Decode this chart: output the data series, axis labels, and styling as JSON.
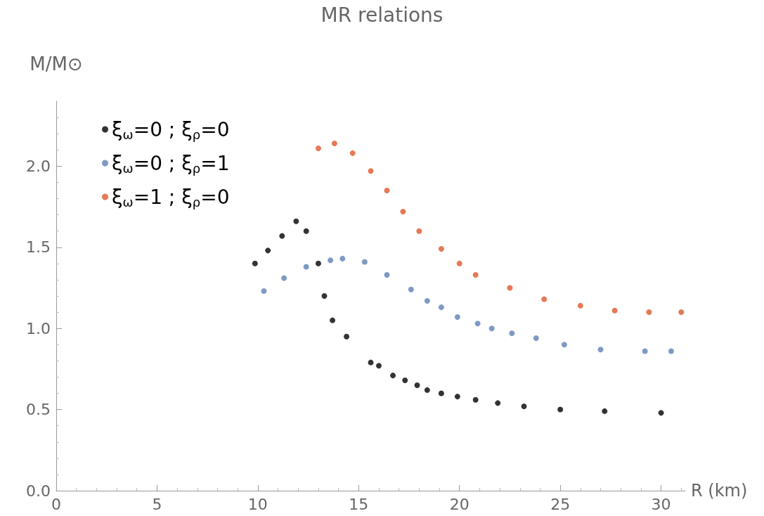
{
  "chart_data": {
    "type": "scatter",
    "title": "MR relations",
    "xlabel": "R (km)",
    "ylabel": "M/M⊙",
    "marker": "circle",
    "grid": false,
    "legend": "top left",
    "xlim": [
      0,
      31.2
    ],
    "xticks": [
      0,
      5,
      10,
      15,
      20,
      25,
      30
    ],
    "ylim": [
      0,
      2.4
    ],
    "yticks": [
      {
        "value": 0,
        "label": "0.0"
      },
      {
        "value": 0.5,
        "label": "0.5"
      },
      {
        "value": 1,
        "label": "1.0"
      },
      {
        "value": 1.5,
        "label": "1.5"
      },
      {
        "value": 2,
        "label": "2.0"
      }
    ],
    "series": [
      {
        "name": "ξ$_{ω}$=0 ; ξ$_{ρ}$=0",
        "color": "#000000",
        "x": [
          9.86,
          10.5,
          11.2,
          11.9,
          12.4,
          13.0,
          13.3,
          13.7,
          14.4,
          15.6,
          16.0,
          16.7,
          17.3,
          17.9,
          18.4,
          19.1,
          19.9,
          20.8,
          21.9,
          23.2,
          25.0,
          27.2,
          30.0
        ],
        "values": [
          1.4,
          1.48,
          1.57,
          1.66,
          1.6,
          1.4,
          1.2,
          1.05,
          0.95,
          0.79,
          0.77,
          0.71,
          0.68,
          0.65,
          0.62,
          0.6,
          0.58,
          0.56,
          0.54,
          0.52,
          0.5,
          0.49,
          0.48
        ]
      },
      {
        "name": "ξ$_{ω}$=0 ; ξ$_{ρ}$=1",
        "color": "#5e81b5",
        "x": [
          10.3,
          11.3,
          12.4,
          13.6,
          14.2,
          15.3,
          16.4,
          17.6,
          18.4,
          19.1,
          19.9,
          20.9,
          21.6,
          22.6,
          23.8,
          25.2,
          27.0,
          29.2,
          30.5
        ],
        "values": [
          1.23,
          1.31,
          1.38,
          1.42,
          1.43,
          1.41,
          1.33,
          1.24,
          1.17,
          1.13,
          1.07,
          1.03,
          1.0,
          0.97,
          0.94,
          0.9,
          0.87,
          0.86,
          0.86
        ]
      },
      {
        "name": "ξ$_{ω}$=1 ; ξ$_{ρ}$=0",
        "color": "#e0572c",
        "x": [
          13.0,
          13.8,
          14.7,
          15.6,
          16.4,
          17.2,
          18.0,
          19.1,
          20.0,
          20.8,
          22.5,
          24.2,
          26.0,
          27.7,
          29.4,
          31.0
        ],
        "values": [
          2.11,
          2.14,
          2.08,
          1.97,
          1.85,
          1.72,
          1.6,
          1.49,
          1.4,
          1.33,
          1.25,
          1.18,
          1.14,
          1.11,
          1.1,
          1.1
        ]
      }
    ]
  }
}
